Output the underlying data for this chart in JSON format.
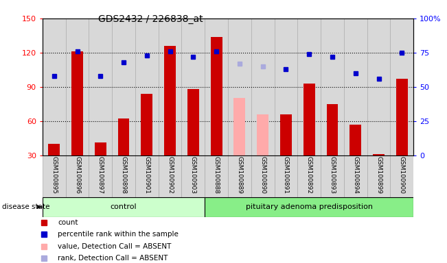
{
  "title": "GDS2432 / 226838_at",
  "samples": [
    "GSM100895",
    "GSM100896",
    "GSM100897",
    "GSM100898",
    "GSM100901",
    "GSM100902",
    "GSM100903",
    "GSM100888",
    "GSM100889",
    "GSM100890",
    "GSM100891",
    "GSM100892",
    "GSM100893",
    "GSM100894",
    "GSM100899",
    "GSM100900"
  ],
  "bar_values": [
    40,
    121,
    41,
    62,
    84,
    126,
    88,
    134,
    80,
    66,
    66,
    93,
    75,
    57,
    31,
    97
  ],
  "bar_absent": [
    false,
    false,
    false,
    false,
    false,
    false,
    false,
    false,
    true,
    true,
    false,
    false,
    false,
    false,
    false,
    false
  ],
  "percentile_values": [
    58,
    76,
    58,
    68,
    73,
    76,
    72,
    76,
    67,
    65,
    63,
    74,
    72,
    60,
    56,
    75
  ],
  "percentile_absent": [
    false,
    false,
    false,
    false,
    false,
    false,
    false,
    false,
    true,
    true,
    false,
    false,
    false,
    false,
    false,
    false
  ],
  "n_control": 7,
  "n_adenoma": 9,
  "ylim_left": [
    30,
    150
  ],
  "ylim_right": [
    0,
    100
  ],
  "yticks_left": [
    30,
    60,
    90,
    120,
    150
  ],
  "yticks_right": [
    0,
    25,
    50,
    75,
    100
  ],
  "bar_color": "#cc0000",
  "bar_absent_color": "#ffaaaa",
  "dot_color": "#0000cc",
  "dot_absent_color": "#aaaadd",
  "control_bg": "#ccffcc",
  "adenoma_bg": "#88ee88",
  "col_bg": "#d8d8d8",
  "col_line": "#aaaaaa"
}
